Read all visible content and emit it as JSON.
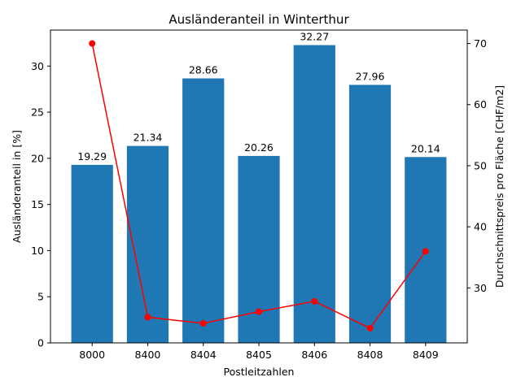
{
  "chart_data": {
    "type": "bar",
    "title": "Ausländeranteil in Winterthur",
    "xlabel": "Postleitzahlen",
    "ylabel": "Ausländeranteil in [%]",
    "y2label": "Durchschnittspreis pro Fläche [CHF/m2]",
    "categories": [
      "8000",
      "8400",
      "8404",
      "8405",
      "8406",
      "8408",
      "8409"
    ],
    "ylim": [
      0,
      33.9
    ],
    "yticks": [
      0,
      5,
      10,
      15,
      20,
      25,
      30
    ],
    "y2lim": [
      21.0,
      72.2
    ],
    "y2ticks": [
      30,
      40,
      50,
      60,
      70
    ],
    "grid": false,
    "series": [
      {
        "kind": "bar",
        "axis": "left",
        "color": "#1f77b4",
        "values": [
          19.29,
          21.34,
          28.66,
          20.26,
          32.27,
          27.96,
          20.14
        ],
        "labels": [
          "19.29",
          "21.34",
          "28.66",
          "20.26",
          "32.27",
          "27.96",
          "20.14"
        ]
      },
      {
        "kind": "line",
        "axis": "right",
        "color": "#ff0000",
        "marker": "circle",
        "values": [
          70.0,
          25.2,
          24.2,
          26.1,
          27.8,
          23.4,
          36.0
        ]
      }
    ]
  }
}
